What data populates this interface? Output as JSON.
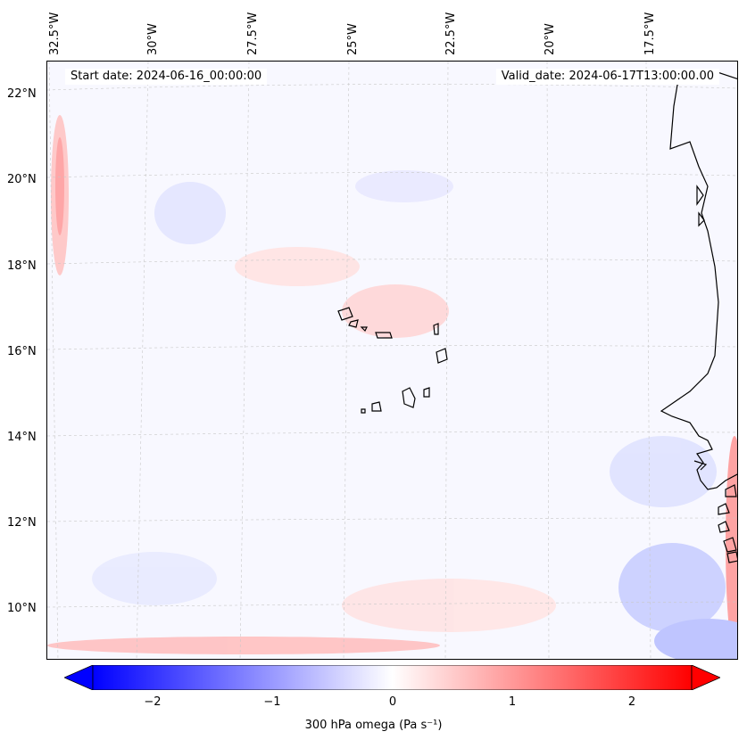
{
  "map": {
    "start_label": "Start date: 2024-06-16_00:00:00",
    "valid_label": "Valid_date: 2024-06-17T13:00:00.00",
    "lon_labels": [
      "32.5°W",
      "30°W",
      "27.5°W",
      "25°W",
      "22.5°W",
      "20°W",
      "17.5°W"
    ],
    "lat_labels": [
      "22°N",
      "20°N",
      "18°N",
      "16°N",
      "14°N",
      "12°N",
      "10°N"
    ],
    "field_variable": "omega",
    "coastline_color": "#000000"
  },
  "colorbar": {
    "ticks": [
      "−2",
      "−1",
      "0",
      "1",
      "2"
    ],
    "label": "300 hPa omega (Pa s⁻¹)",
    "min": -2.5,
    "max": 2.5,
    "negative_color": "#0000ff",
    "positive_color": "#ff0000",
    "extend": "both"
  }
}
